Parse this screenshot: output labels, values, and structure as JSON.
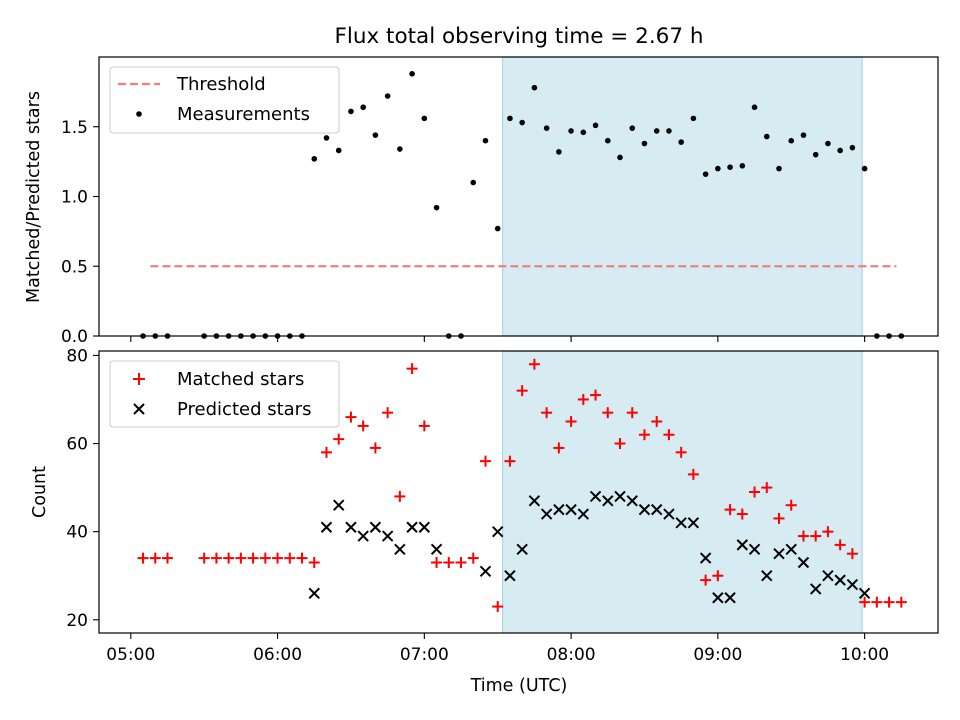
{
  "chart_data": [
    {
      "type": "scatter",
      "title": "Flux total observing time = 2.67 h",
      "ylabel": "Matched/Predicted stars",
      "xlabel": "",
      "xlim": [
        "04:47",
        "10:30"
      ],
      "ylim": [
        0,
        2.0
      ],
      "yticks": [
        0.0,
        0.5,
        1.0,
        1.5
      ],
      "ytick_labels": [
        "0.0",
        "0.5",
        "1.0",
        "1.5"
      ],
      "legend_position": "top-left",
      "grid": false,
      "shaded_region": {
        "x_start": "07:32",
        "x_end": "09:59",
        "color": "#add8e6"
      },
      "threshold": {
        "name": "Threshold",
        "y": 0.5,
        "x_start": "05:08",
        "x_end": "10:13",
        "color": "#f08080",
        "style": "dashed"
      },
      "series": [
        {
          "name": "Measurements",
          "color": "#000000",
          "x": [
            "05:05",
            "05:10",
            "05:15",
            "05:30",
            "05:35",
            "05:40",
            "05:45",
            "05:50",
            "05:55",
            "06:00",
            "06:05",
            "06:10",
            "06:15",
            "06:20",
            "06:25",
            "06:30",
            "06:35",
            "06:40",
            "06:45",
            "06:50",
            "06:55",
            "07:00",
            "07:05",
            "07:10",
            "07:15",
            "07:20",
            "07:25",
            "07:30",
            "07:35",
            "07:40",
            "07:45",
            "07:50",
            "07:55",
            "08:00",
            "08:05",
            "08:10",
            "08:15",
            "08:20",
            "08:25",
            "08:30",
            "08:35",
            "08:40",
            "08:45",
            "08:50",
            "08:55",
            "09:00",
            "09:05",
            "09:10",
            "09:15",
            "09:20",
            "09:25",
            "09:30",
            "09:35",
            "09:40",
            "09:45",
            "09:50",
            "09:55",
            "10:00",
            "10:05",
            "10:10",
            "10:15"
          ],
          "y": [
            0,
            0,
            0,
            0,
            0,
            0,
            0,
            0,
            0,
            0,
            0,
            0,
            1.27,
            1.42,
            1.33,
            1.61,
            1.64,
            1.44,
            1.72,
            1.34,
            1.88,
            1.56,
            0.92,
            0,
            0,
            1.1,
            1.4,
            0.77,
            1.56,
            1.53,
            1.78,
            1.49,
            1.32,
            1.47,
            1.46,
            1.51,
            1.4,
            1.28,
            1.49,
            1.38,
            1.47,
            1.47,
            1.39,
            1.56,
            1.16,
            1.2,
            1.21,
            1.22,
            1.64,
            1.43,
            1.2,
            1.4,
            1.44,
            1.3,
            1.38,
            1.33,
            1.35,
            1.2,
            0,
            0,
            0
          ]
        }
      ]
    },
    {
      "type": "scatter",
      "title": "",
      "xlabel": "Time (UTC)",
      "ylabel": "Count",
      "xlim": [
        "04:47",
        "10:30"
      ],
      "xticks": [
        "05:00",
        "06:00",
        "07:00",
        "08:00",
        "09:00",
        "10:00"
      ],
      "xtick_labels": [
        "05:00",
        "06:00",
        "07:00",
        "08:00",
        "09:00",
        "10:00"
      ],
      "ylim": [
        17,
        81
      ],
      "yticks": [
        20,
        40,
        60,
        80
      ],
      "ytick_labels": [
        "20",
        "40",
        "60",
        "80"
      ],
      "legend_position": "top-left",
      "grid": false,
      "shaded_region": {
        "x_start": "07:32",
        "x_end": "09:59",
        "color": "#add8e6"
      },
      "series": [
        {
          "name": "Matched stars",
          "marker": "plus",
          "color": "#ff0000",
          "x": [
            "05:05",
            "05:10",
            "05:15",
            "05:30",
            "05:35",
            "05:40",
            "05:45",
            "05:50",
            "05:55",
            "06:00",
            "06:05",
            "06:10",
            "06:15",
            "06:20",
            "06:25",
            "06:30",
            "06:35",
            "06:40",
            "06:45",
            "06:50",
            "06:55",
            "07:00",
            "07:05",
            "07:10",
            "07:15",
            "07:20",
            "07:25",
            "07:30",
            "07:35",
            "07:40",
            "07:45",
            "07:50",
            "07:55",
            "08:00",
            "08:05",
            "08:10",
            "08:15",
            "08:20",
            "08:25",
            "08:30",
            "08:35",
            "08:40",
            "08:45",
            "08:50",
            "08:55",
            "09:00",
            "09:05",
            "09:10",
            "09:15",
            "09:20",
            "09:25",
            "09:30",
            "09:35",
            "09:40",
            "09:45",
            "09:50",
            "09:55",
            "10:00",
            "10:05",
            "10:10",
            "10:15"
          ],
          "y": [
            34,
            34,
            34,
            34,
            34,
            34,
            34,
            34,
            34,
            34,
            34,
            34,
            33,
            58,
            61,
            66,
            64,
            59,
            67,
            48,
            77,
            64,
            33,
            33,
            33,
            34,
            56,
            23,
            56,
            72,
            78,
            67,
            59,
            65,
            70,
            71,
            67,
            60,
            67,
            62,
            65,
            62,
            58,
            53,
            29,
            30,
            45,
            44,
            49,
            50,
            43,
            46,
            39,
            39,
            40,
            37,
            35,
            24,
            24,
            24,
            24
          ]
        },
        {
          "name": "Predicted stars",
          "marker": "x",
          "color": "#000000",
          "x": [
            "06:15",
            "06:20",
            "06:25",
            "06:30",
            "06:35",
            "06:40",
            "06:45",
            "06:50",
            "06:55",
            "07:00",
            "07:05",
            "07:25",
            "07:30",
            "07:35",
            "07:40",
            "07:45",
            "07:50",
            "07:55",
            "08:00",
            "08:05",
            "08:10",
            "08:15",
            "08:20",
            "08:25",
            "08:30",
            "08:35",
            "08:40",
            "08:45",
            "08:50",
            "08:55",
            "09:00",
            "09:05",
            "09:10",
            "09:15",
            "09:20",
            "09:25",
            "09:30",
            "09:35",
            "09:40",
            "09:45",
            "09:50",
            "09:55",
            "10:00"
          ],
          "y": [
            26,
            41,
            46,
            41,
            39,
            41,
            39,
            36,
            41,
            41,
            36,
            31,
            40,
            30,
            36,
            47,
            44,
            45,
            45,
            44,
            48,
            47,
            48,
            47,
            45,
            45,
            44,
            42,
            42,
            34,
            25,
            25,
            37,
            36,
            30,
            35,
            36,
            33,
            27,
            30,
            29,
            28,
            26
          ]
        }
      ]
    }
  ]
}
